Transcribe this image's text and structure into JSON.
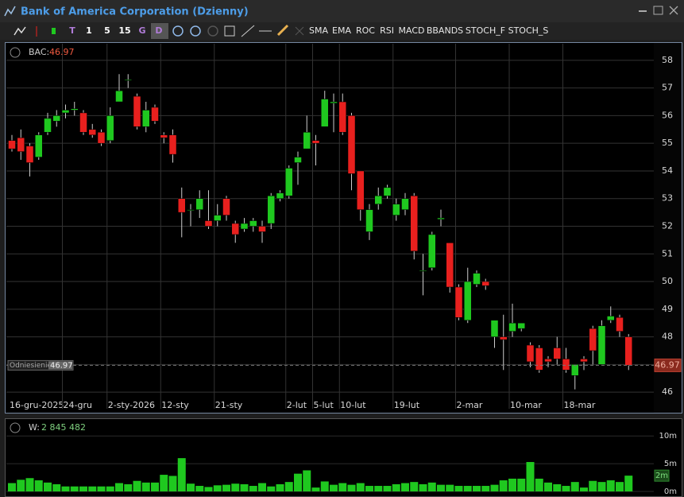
{
  "window": {
    "title": "Bank of America Corporation (Dzienny)"
  },
  "toolbar": {
    "buttons": [
      "T",
      "1",
      "5",
      "15",
      "G",
      "D",
      "SMA",
      "EMA",
      "ROC",
      "RSI",
      "MACD",
      "BBANDS",
      "STOCH_F",
      "STOCH_S"
    ]
  },
  "chart_data": [
    {
      "type": "candlestick",
      "symbol": "BAC:",
      "last": 46.97,
      "reference_label": "Odniesienie",
      "up_color": "#1fc81f",
      "down_color": "#e8201e",
      "categories": [
        "16-gru-2025",
        null,
        null,
        null,
        null,
        null,
        "24-gru",
        null,
        null,
        null,
        null,
        "2-sty-2026",
        null,
        null,
        null,
        null,
        null,
        "12-sty",
        null,
        null,
        null,
        null,
        null,
        "21-sty",
        null,
        null,
        null,
        null,
        null,
        null,
        null,
        "2-lut",
        null,
        null,
        "5-lut",
        null,
        null,
        "10-lut",
        null,
        null,
        null,
        null,
        null,
        "19-lut",
        null,
        null,
        null,
        null,
        null,
        null,
        "2-mar",
        null,
        null,
        null,
        null,
        null,
        "10-mar",
        null,
        null,
        null,
        null,
        null,
        "18-mar",
        null,
        null,
        null,
        null,
        null,
        null,
        null
      ],
      "open": [
        55.1,
        55.2,
        54.9,
        54.5,
        55.4,
        55.8,
        56.1,
        56.2,
        56.1,
        55.5,
        55.4,
        55.1,
        56.5,
        57.3,
        56.7,
        55.6,
        56.3,
        55.3,
        55.3,
        53.0,
        52.6,
        52.6,
        52.2,
        52.2,
        53.0,
        52.1,
        51.9,
        52.0,
        52.0,
        52.1,
        53.0,
        53.1,
        54.3,
        54.8,
        55.1,
        55.6,
        56.45,
        56.5,
        56.0,
        54.0,
        51.8,
        52.8,
        53.1,
        52.4,
        52.6,
        53.1,
        50.4,
        50.5,
        52.25,
        51.4,
        49.8,
        48.6,
        49.9,
        50.0,
        48.0,
        48.0,
        48.2,
        48.3,
        47.7,
        47.6,
        47.2,
        47.6,
        47.2,
        46.6,
        47.2,
        48.3,
        47.0,
        48.6,
        48.7,
        48.0
      ],
      "high": [
        55.3,
        55.5,
        55.0,
        55.4,
        56.1,
        56.2,
        56.4,
        56.5,
        56.2,
        55.7,
        55.5,
        56.3,
        57.5,
        57.5,
        56.8,
        56.5,
        56.4,
        55.4,
        55.5,
        53.4,
        52.8,
        53.3,
        53.3,
        52.8,
        53.1,
        52.2,
        52.3,
        52.3,
        52.2,
        53.2,
        53.3,
        54.2,
        54.7,
        56.0,
        55.3,
        56.9,
        56.8,
        56.8,
        56.1,
        54.0,
        52.8,
        53.4,
        53.5,
        53.0,
        53.2,
        53.2,
        51.0,
        51.8,
        52.6,
        51.4,
        49.9,
        50.5,
        50.4,
        50.1,
        48.6,
        48.8,
        49.2,
        48.5,
        47.8,
        47.7,
        47.3,
        48.0,
        47.6,
        47.0,
        47.3,
        48.4,
        48.6,
        49.1,
        48.8,
        48.1
      ],
      "low": [
        54.7,
        54.4,
        53.8,
        54.4,
        55.3,
        55.6,
        55.9,
        56.0,
        55.3,
        55.2,
        54.9,
        55.0,
        56.5,
        57.0,
        55.5,
        55.4,
        55.7,
        55.0,
        54.3,
        51.6,
        52.0,
        52.3,
        51.9,
        52.0,
        52.2,
        51.4,
        51.8,
        51.8,
        51.4,
        51.9,
        52.9,
        53.0,
        53.5,
        54.8,
        54.2,
        55.6,
        55.4,
        55.3,
        53.3,
        52.2,
        51.5,
        52.6,
        53.0,
        52.2,
        52.4,
        50.8,
        49.5,
        50.4,
        52.0,
        49.6,
        48.6,
        48.5,
        49.8,
        49.7,
        47.6,
        46.8,
        48.0,
        48.2,
        46.9,
        46.7,
        46.9,
        47.0,
        46.7,
        46.1,
        46.8,
        47.0,
        47.0,
        48.5,
        48.0,
        46.8
      ],
      "close": [
        54.8,
        54.7,
        54.3,
        55.3,
        55.9,
        56.0,
        56.2,
        56.25,
        55.4,
        55.3,
        55.0,
        56.0,
        56.9,
        57.3,
        55.6,
        56.2,
        55.8,
        55.2,
        54.6,
        52.5,
        52.6,
        53.0,
        52.0,
        52.4,
        52.4,
        51.7,
        52.1,
        52.2,
        51.8,
        53.1,
        53.2,
        54.1,
        54.5,
        55.4,
        55.0,
        56.6,
        56.5,
        55.4,
        53.9,
        52.6,
        52.6,
        53.1,
        53.4,
        52.8,
        53.0,
        51.1,
        50.4,
        51.7,
        52.3,
        49.8,
        48.7,
        50.0,
        50.3,
        49.85,
        48.6,
        47.9,
        48.5,
        48.5,
        47.1,
        46.8,
        47.1,
        47.2,
        46.8,
        47.0,
        47.1,
        47.5,
        48.4,
        48.75,
        48.2,
        46.97
      ],
      "ylim": [
        45.4,
        58.6
      ],
      "yticks": [
        46,
        47,
        48,
        49,
        50,
        51,
        52,
        53,
        54,
        55,
        56,
        57,
        58
      ],
      "grid": true
    },
    {
      "type": "bar",
      "label": "W:",
      "current_label": "2 845 482",
      "current_tag": "2m",
      "color": "#1fc81f",
      "values": [
        1.5,
        2.1,
        2.4,
        2.0,
        1.6,
        1.3,
        0.9,
        0.9,
        0.9,
        0.9,
        0.9,
        0.9,
        1.5,
        1.3,
        1.9,
        1.6,
        1.6,
        3.0,
        2.8,
        6.0,
        1.4,
        1.0,
        0.8,
        1.1,
        1.2,
        1.4,
        1.3,
        1.0,
        1.5,
        0.9,
        1.3,
        1.7,
        3.2,
        3.8,
        0.7,
        1.8,
        1.2,
        1.5,
        1.2,
        1.5,
        1.0,
        1.0,
        1.0,
        1.3,
        1.5,
        1.7,
        1.3,
        1.6,
        1.2,
        1.2,
        1.0,
        1.0,
        1.0,
        1.0,
        1.2,
        2.0,
        2.3,
        2.3,
        5.3,
        2.3,
        1.6,
        1.3,
        1.0,
        1.7,
        0.7,
        1.9,
        1.7,
        2.0,
        1.7,
        2.845482
      ],
      "ylim": [
        0,
        12.9
      ],
      "yticks": [
        {
          "value": 0,
          "label": "0m"
        },
        {
          "value": 5,
          "label": "5m"
        },
        {
          "value": 10,
          "label": "10m"
        }
      ]
    }
  ]
}
